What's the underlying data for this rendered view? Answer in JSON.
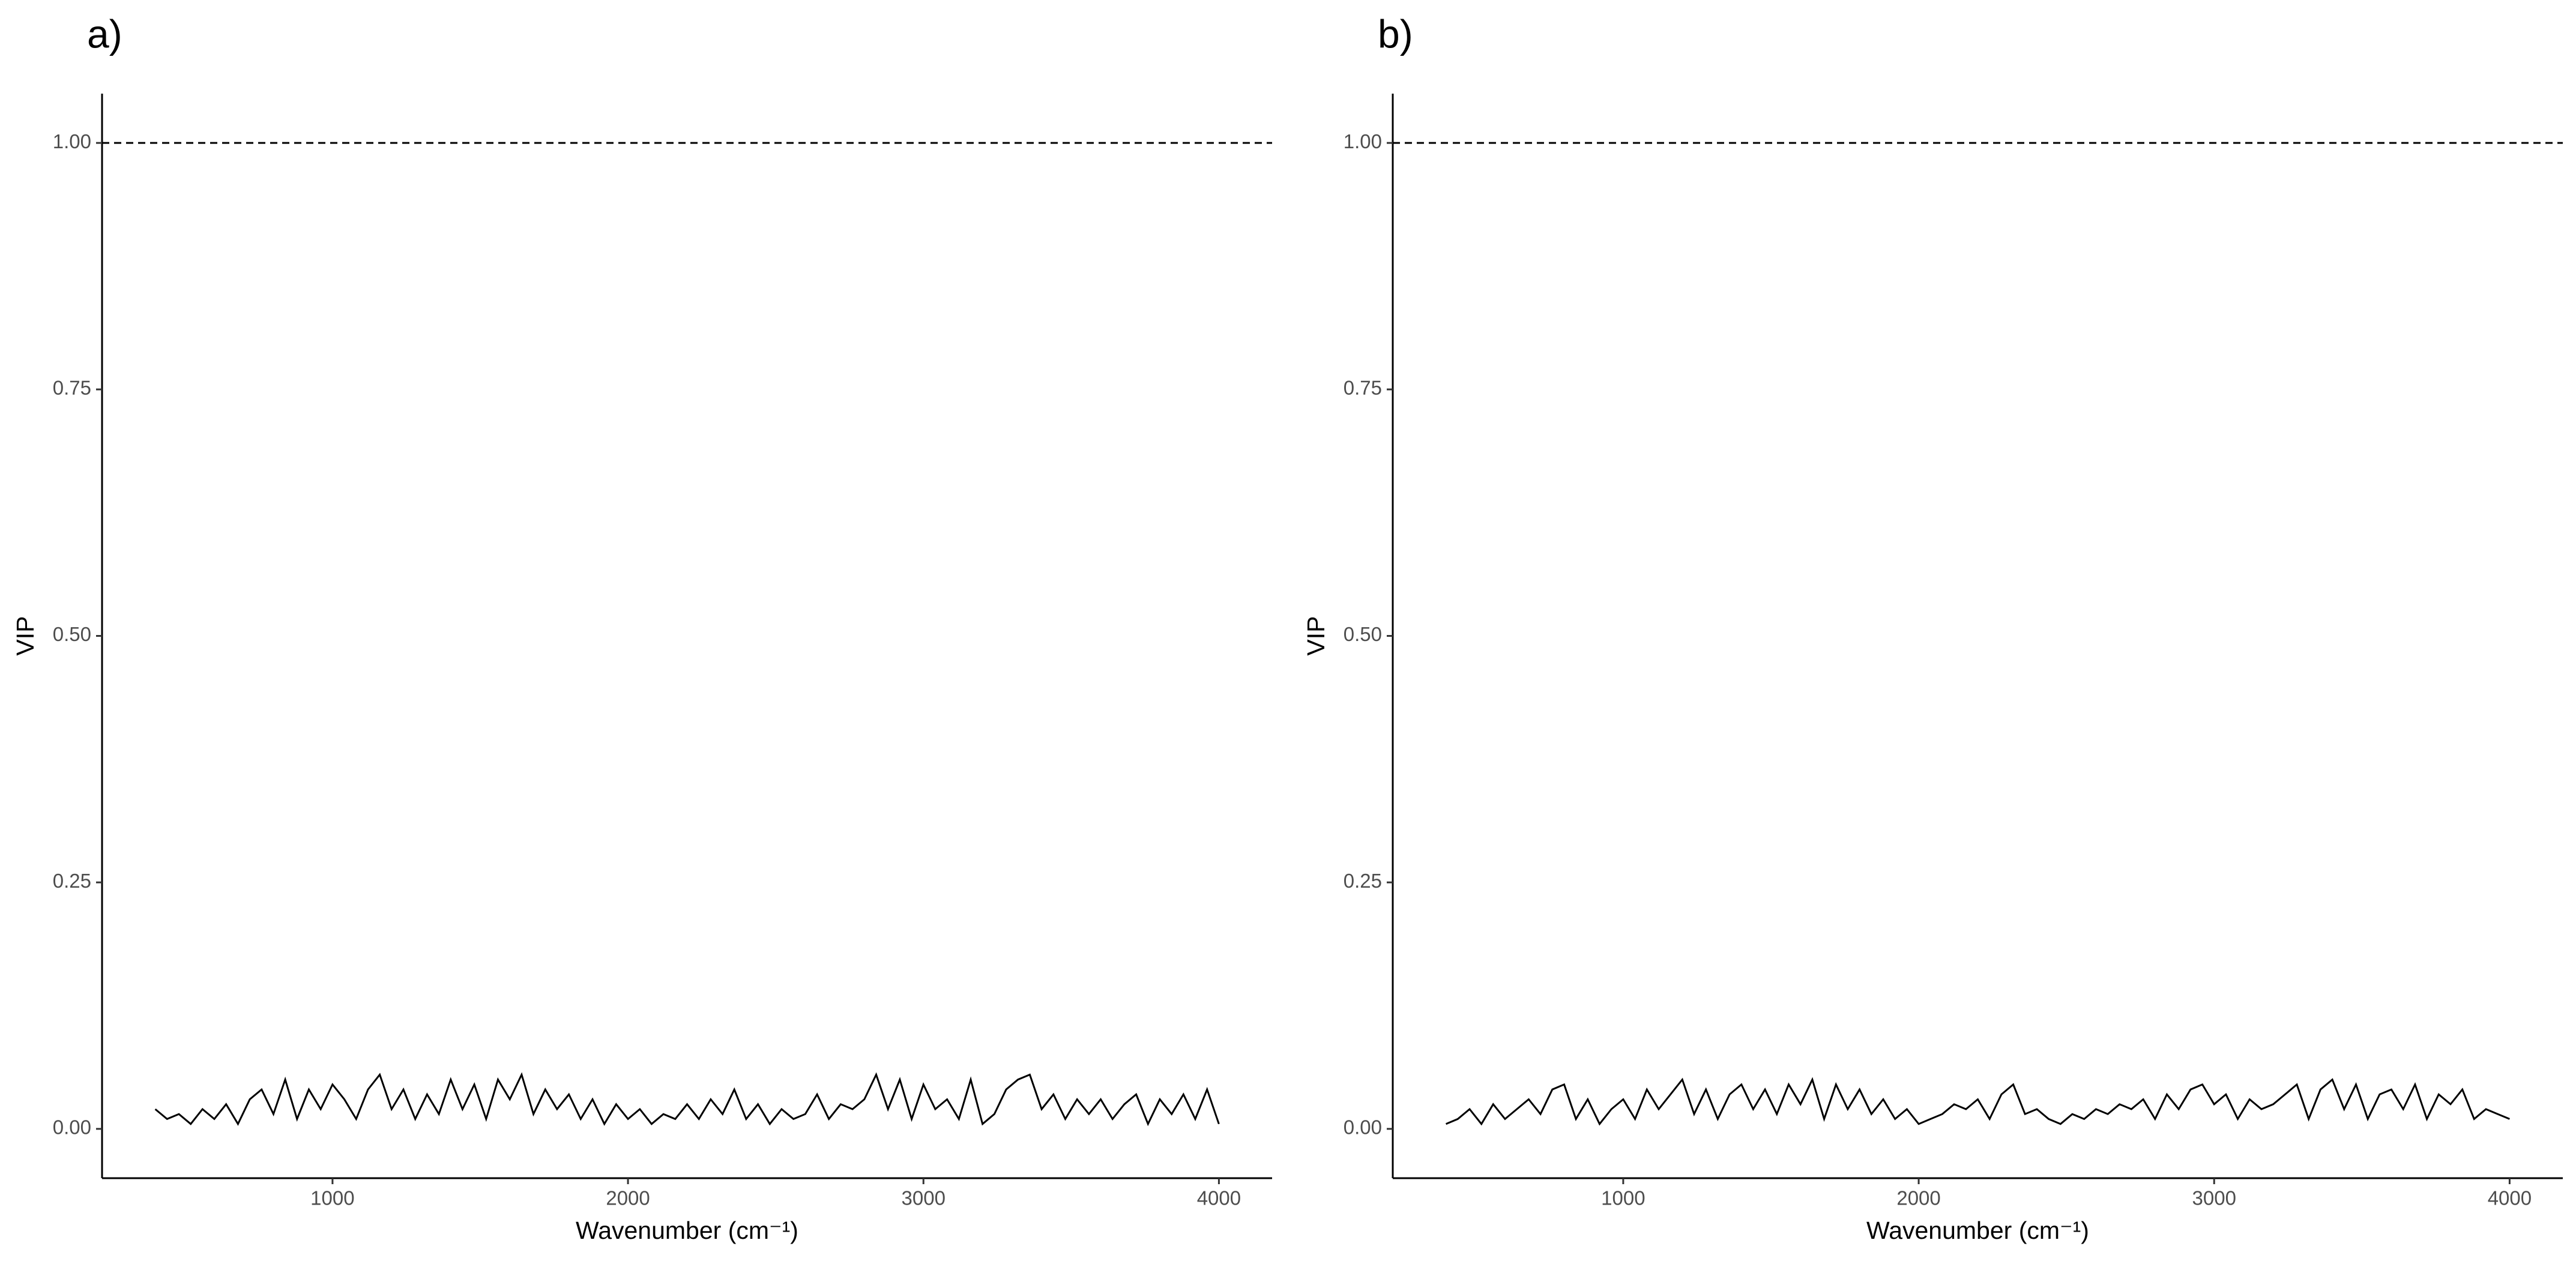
{
  "chart_data": [
    {
      "type": "line",
      "panel_label": "a)",
      "x_label": "Wavenumber (cm⁻¹)",
      "y_label": "VIP",
      "color": "#000000",
      "x": [
        400,
        440,
        480,
        520,
        560,
        600,
        640,
        680,
        720,
        760,
        800,
        840,
        880,
        920,
        960,
        1000,
        1040,
        1080,
        1120,
        1160,
        1200,
        1240,
        1280,
        1320,
        1360,
        1400,
        1440,
        1480,
        1520,
        1560,
        1600,
        1640,
        1680,
        1720,
        1760,
        1800,
        1840,
        1880,
        1920,
        1960,
        2000,
        2040,
        2080,
        2120,
        2160,
        2200,
        2240,
        2280,
        2320,
        2360,
        2400,
        2440,
        2480,
        2520,
        2560,
        2600,
        2640,
        2680,
        2720,
        2760,
        2800,
        2840,
        2880,
        2920,
        2960,
        3000,
        3040,
        3080,
        3120,
        3160,
        3200,
        3240,
        3280,
        3320,
        3360,
        3400,
        3440,
        3480,
        3520,
        3560,
        3600,
        3640,
        3680,
        3720,
        3760,
        3800,
        3840,
        3880,
        3920,
        3960,
        4000
      ],
      "values": [
        0.02,
        0.01,
        0.015,
        0.005,
        0.02,
        0.01,
        0.025,
        0.005,
        0.03,
        0.04,
        0.015,
        0.05,
        0.01,
        0.04,
        0.02,
        0.045,
        0.03,
        0.01,
        0.04,
        0.055,
        0.02,
        0.04,
        0.01,
        0.035,
        0.015,
        0.05,
        0.02,
        0.045,
        0.01,
        0.05,
        0.03,
        0.055,
        0.015,
        0.04,
        0.02,
        0.035,
        0.01,
        0.03,
        0.005,
        0.025,
        0.01,
        0.02,
        0.005,
        0.015,
        0.01,
        0.025,
        0.01,
        0.03,
        0.015,
        0.04,
        0.01,
        0.025,
        0.005,
        0.02,
        0.01,
        0.015,
        0.035,
        0.01,
        0.025,
        0.02,
        0.03,
        0.055,
        0.02,
        0.05,
        0.01,
        0.045,
        0.02,
        0.03,
        0.01,
        0.05,
        0.005,
        0.015,
        0.04,
        0.05,
        0.055,
        0.02,
        0.035,
        0.01,
        0.03,
        0.015,
        0.03,
        0.01,
        0.025,
        0.035,
        0.005,
        0.03,
        0.015,
        0.035,
        0.01,
        0.04,
        0.005
      ],
      "xlim": [
        220,
        4180
      ],
      "ylim": [
        -0.05,
        1.05
      ],
      "xticks": [
        1000,
        2000,
        3000,
        4000
      ],
      "yticks": [
        {
          "value": 0,
          "label": "0.00"
        },
        {
          "value": 0.25,
          "label": "0.25"
        },
        {
          "value": 0.5,
          "label": "0.50"
        },
        {
          "value": 0.75,
          "label": "0.75"
        },
        {
          "value": 1,
          "label": "1.00"
        }
      ],
      "hline": 1
    },
    {
      "type": "line",
      "panel_label": "b)",
      "x_label": "Wavenumber (cm⁻¹)",
      "y_label": "VIP",
      "color": "#000000",
      "x": [
        400,
        440,
        480,
        520,
        560,
        600,
        640,
        680,
        720,
        760,
        800,
        840,
        880,
        920,
        960,
        1000,
        1040,
        1080,
        1120,
        1160,
        1200,
        1240,
        1280,
        1320,
        1360,
        1400,
        1440,
        1480,
        1520,
        1560,
        1600,
        1640,
        1680,
        1720,
        1760,
        1800,
        1840,
        1880,
        1920,
        1960,
        2000,
        2040,
        2080,
        2120,
        2160,
        2200,
        2240,
        2280,
        2320,
        2360,
        2400,
        2440,
        2480,
        2520,
        2560,
        2600,
        2640,
        2680,
        2720,
        2760,
        2800,
        2840,
        2880,
        2920,
        2960,
        3000,
        3040,
        3080,
        3120,
        3160,
        3200,
        3240,
        3280,
        3320,
        3360,
        3400,
        3440,
        3480,
        3520,
        3560,
        3600,
        3640,
        3680,
        3720,
        3760,
        3800,
        3840,
        3880,
        3920,
        3960,
        4000
      ],
      "values": [
        0.005,
        0.01,
        0.02,
        0.005,
        0.025,
        0.01,
        0.02,
        0.03,
        0.015,
        0.04,
        0.045,
        0.01,
        0.03,
        0.005,
        0.02,
        0.03,
        0.01,
        0.04,
        0.02,
        0.035,
        0.05,
        0.015,
        0.04,
        0.01,
        0.035,
        0.045,
        0.02,
        0.04,
        0.015,
        0.045,
        0.025,
        0.05,
        0.01,
        0.045,
        0.02,
        0.04,
        0.015,
        0.03,
        0.01,
        0.02,
        0.005,
        0.01,
        0.015,
        0.025,
        0.02,
        0.03,
        0.01,
        0.035,
        0.045,
        0.015,
        0.02,
        0.01,
        0.005,
        0.015,
        0.01,
        0.02,
        0.015,
        0.025,
        0.02,
        0.03,
        0.01,
        0.035,
        0.02,
        0.04,
        0.045,
        0.025,
        0.035,
        0.01,
        0.03,
        0.02,
        0.025,
        0.035,
        0.045,
        0.01,
        0.04,
        0.05,
        0.02,
        0.045,
        0.01,
        0.035,
        0.04,
        0.02,
        0.045,
        0.01,
        0.035,
        0.025,
        0.04,
        0.01,
        0.02,
        0.015,
        0.01
      ],
      "xlim": [
        220,
        4180
      ],
      "ylim": [
        -0.05,
        1.05
      ],
      "xticks": [
        1000,
        2000,
        3000,
        4000
      ],
      "yticks": [
        {
          "value": 0,
          "label": "0.00"
        },
        {
          "value": 0.25,
          "label": "0.25"
        },
        {
          "value": 0.5,
          "label": "0.50"
        },
        {
          "value": 0.75,
          "label": "0.75"
        },
        {
          "value": 1,
          "label": "1.00"
        }
      ],
      "hline": 1
    }
  ]
}
